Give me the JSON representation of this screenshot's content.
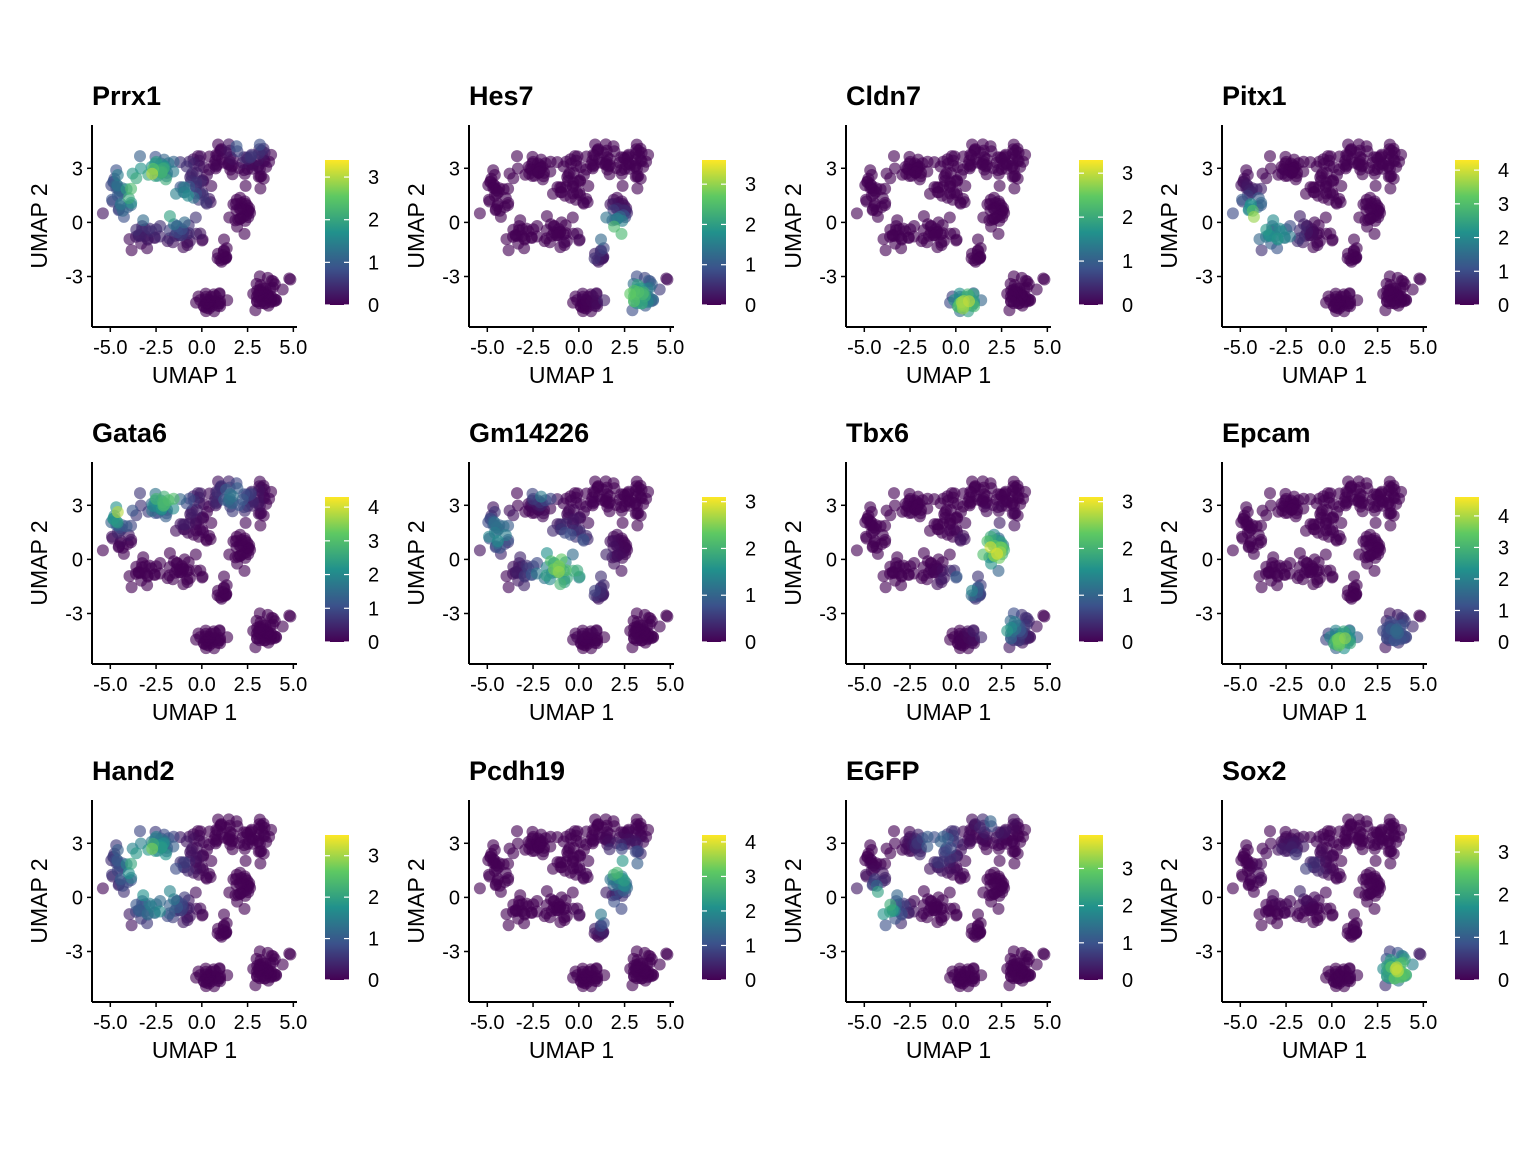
{
  "figure": {
    "axis_labels": {
      "x": "UMAP 1",
      "y": "UMAP 2"
    },
    "x_ticks": [
      "-5.0",
      "-2.5",
      "0.0",
      "2.5",
      "5.0"
    ],
    "y_ticks": [
      "3",
      "0",
      "-3"
    ]
  },
  "chart_data": [
    {
      "type": "scatter",
      "title": "Prrx1",
      "xlabel": "UMAP 1",
      "ylabel": "UMAP 2",
      "xlim": [
        -6,
        5.2
      ],
      "ylim": [
        -5.8,
        5.4
      ],
      "colorbar_ticks": [
        "0",
        "1",
        "2",
        "3"
      ],
      "colorbar_max": 3.4,
      "hotspots": [
        {
          "x": -3.0,
          "y": 2.0,
          "r": 2.3,
          "v": 3.2
        },
        {
          "x": -1.5,
          "y": 1.0,
          "r": 1.8,
          "v": 2.2
        },
        {
          "x": 2.5,
          "y": 4.5,
          "r": 1.0,
          "v": 1.8
        }
      ]
    },
    {
      "type": "scatter",
      "title": "Hes7",
      "xlabel": "UMAP 1",
      "ylabel": "UMAP 2",
      "xlim": [
        -6,
        5.2
      ],
      "ylim": [
        -5.8,
        5.4
      ],
      "colorbar_ticks": [
        "0",
        "1",
        "2",
        "3"
      ],
      "colorbar_max": 3.6,
      "hotspots": [
        {
          "x": 1.8,
          "y": -0.5,
          "r": 1.2,
          "v": 3.0
        },
        {
          "x": 3.0,
          "y": -4.0,
          "r": 1.5,
          "v": 2.6
        },
        {
          "x": 0.2,
          "y": -2.5,
          "r": 1.0,
          "v": 1.6
        }
      ]
    },
    {
      "type": "scatter",
      "title": "Cldn7",
      "xlabel": "UMAP 1",
      "ylabel": "UMAP 2",
      "xlim": [
        -6,
        5.2
      ],
      "ylim": [
        -5.8,
        5.4
      ],
      "colorbar_ticks": [
        "0",
        "1",
        "2",
        "3"
      ],
      "colorbar_max": 3.3,
      "hotspots": [
        {
          "x": 0.6,
          "y": -4.5,
          "r": 1.1,
          "v": 3.0
        }
      ]
    },
    {
      "type": "scatter",
      "title": "Pitx1",
      "xlabel": "UMAP 1",
      "ylabel": "UMAP 2",
      "xlim": [
        -6,
        5.2
      ],
      "ylim": [
        -5.8,
        5.4
      ],
      "colorbar_ticks": [
        "0",
        "1",
        "2",
        "3",
        "4"
      ],
      "colorbar_max": 4.3,
      "hotspots": [
        {
          "x": -4.3,
          "y": 0.0,
          "r": 1.7,
          "v": 3.6
        },
        {
          "x": -3.0,
          "y": -0.5,
          "r": 1.4,
          "v": 2.5
        }
      ]
    },
    {
      "type": "scatter",
      "title": "Gata6",
      "xlabel": "UMAP 1",
      "ylabel": "UMAP 2",
      "xlim": [
        -6,
        5.2
      ],
      "ylim": [
        -5.8,
        5.4
      ],
      "colorbar_ticks": [
        "0",
        "1",
        "2",
        "3",
        "4"
      ],
      "colorbar_max": 4.3,
      "hotspots": [
        {
          "x": -2.0,
          "y": 3.5,
          "r": 1.6,
          "v": 3.0
        },
        {
          "x": -4.5,
          "y": 2.5,
          "r": 1.0,
          "v": 3.6
        },
        {
          "x": 1.8,
          "y": 3.5,
          "r": 1.2,
          "v": 1.6
        }
      ]
    },
    {
      "type": "scatter",
      "title": "Gm14226",
      "xlabel": "UMAP 1",
      "ylabel": "UMAP 2",
      "xlim": [
        -6,
        5.2
      ],
      "ylim": [
        -5.8,
        5.4
      ],
      "colorbar_ticks": [
        "0",
        "1",
        "2",
        "3"
      ],
      "colorbar_max": 3.1,
      "hotspots": [
        {
          "x": -0.8,
          "y": -0.5,
          "r": 2.2,
          "v": 2.4
        },
        {
          "x": -2.0,
          "y": 4.0,
          "r": 0.8,
          "v": 2.8
        },
        {
          "x": -4.5,
          "y": 1.5,
          "r": 1.2,
          "v": 1.8
        }
      ]
    },
    {
      "type": "scatter",
      "title": "Tbx6",
      "xlabel": "UMAP 1",
      "ylabel": "UMAP 2",
      "xlim": [
        -6,
        5.2
      ],
      "ylim": [
        -5.8,
        5.4
      ],
      "colorbar_ticks": [
        "0",
        "1",
        "2",
        "3"
      ],
      "colorbar_max": 3.1,
      "hotspots": [
        {
          "x": 2.0,
          "y": 0.5,
          "r": 1.4,
          "v": 2.8
        },
        {
          "x": 2.5,
          "y": -3.5,
          "r": 1.4,
          "v": 2.0
        },
        {
          "x": 0.5,
          "y": -1.5,
          "r": 1.2,
          "v": 1.6
        }
      ]
    },
    {
      "type": "scatter",
      "title": "Epcam",
      "xlabel": "UMAP 1",
      "ylabel": "UMAP 2",
      "xlim": [
        -6,
        5.2
      ],
      "ylim": [
        -5.8,
        5.4
      ],
      "colorbar_ticks": [
        "0",
        "1",
        "2",
        "3",
        "4"
      ],
      "colorbar_max": 4.6,
      "hotspots": [
        {
          "x": 0.6,
          "y": -4.5,
          "r": 1.1,
          "v": 3.8
        },
        {
          "x": 3.5,
          "y": -4.0,
          "r": 1.2,
          "v": 1.4
        }
      ]
    },
    {
      "type": "scatter",
      "title": "Hand2",
      "xlabel": "UMAP 1",
      "ylabel": "UMAP 2",
      "xlim": [
        -6,
        5.2
      ],
      "ylim": [
        -5.8,
        5.4
      ],
      "colorbar_ticks": [
        "0",
        "1",
        "2",
        "3"
      ],
      "colorbar_max": 3.5,
      "hotspots": [
        {
          "x": -3.0,
          "y": 2.0,
          "r": 2.0,
          "v": 3.1
        },
        {
          "x": -2.5,
          "y": 0.0,
          "r": 1.8,
          "v": 2.0
        }
      ]
    },
    {
      "type": "scatter",
      "title": "Pcdh19",
      "xlabel": "UMAP 1",
      "ylabel": "UMAP 2",
      "xlim": [
        -6,
        5.2
      ],
      "ylim": [
        -5.8,
        5.4
      ],
      "colorbar_ticks": [
        "0",
        "1",
        "2",
        "3",
        "4"
      ],
      "colorbar_max": 4.2,
      "hotspots": [
        {
          "x": 2.5,
          "y": 1.5,
          "r": 1.3,
          "v": 3.6
        },
        {
          "x": 1.5,
          "y": -0.8,
          "r": 1.0,
          "v": 2.6
        }
      ]
    },
    {
      "type": "scatter",
      "title": "EGFP",
      "xlabel": "UMAP 1",
      "ylabel": "UMAP 2",
      "xlim": [
        -6,
        5.2
      ],
      "ylim": [
        -5.8,
        5.4
      ],
      "colorbar_ticks": [
        "0",
        "1",
        "2",
        "3"
      ],
      "colorbar_max": 3.9,
      "hotspots": [
        {
          "x": -4.2,
          "y": -0.5,
          "r": 1.4,
          "v": 3.6
        },
        {
          "x": -1.0,
          "y": 3.0,
          "r": 1.4,
          "v": 1.4
        },
        {
          "x": 2.0,
          "y": 4.5,
          "r": 1.0,
          "v": 1.4
        }
      ]
    },
    {
      "type": "scatter",
      "title": "Sox2",
      "xlabel": "UMAP 1",
      "ylabel": "UMAP 2",
      "xlim": [
        -6,
        5.2
      ],
      "ylim": [
        -5.8,
        5.4
      ],
      "colorbar_ticks": [
        "0",
        "1",
        "2",
        "3"
      ],
      "colorbar_max": 3.4,
      "hotspots": [
        {
          "x": 3.6,
          "y": -4.0,
          "r": 1.3,
          "v": 2.8
        },
        {
          "x": -2.0,
          "y": 1.5,
          "r": 1.5,
          "v": 1.0
        }
      ]
    }
  ]
}
